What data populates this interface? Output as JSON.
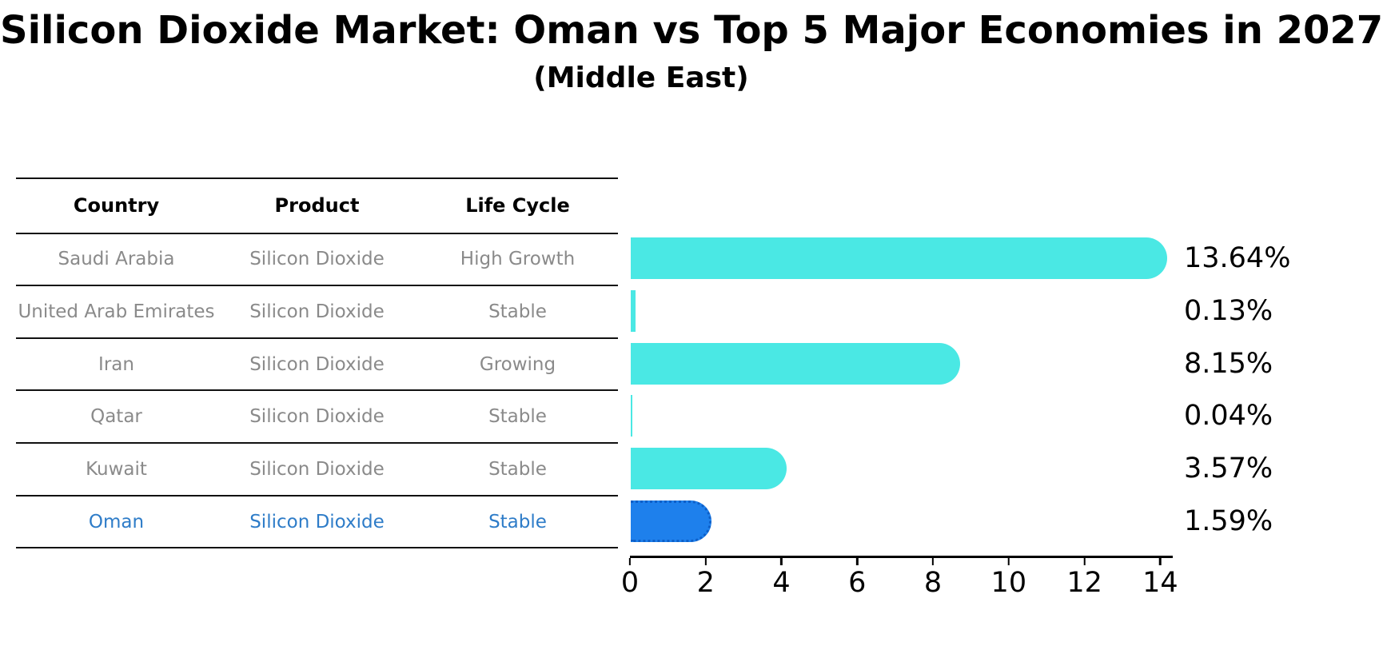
{
  "title": "Silicon Dioxide Market: Oman vs Top 5 Major Economies in 2027",
  "subtitle": "(Middle East)",
  "table": {
    "headers": {
      "country": "Country",
      "product": "Product",
      "life_cycle": "Life Cycle"
    },
    "rows": [
      {
        "country": "Saudi Arabia",
        "product": "Silicon Dioxide",
        "life_cycle": "High Growth",
        "highlight": false
      },
      {
        "country": "United Arab Emirates",
        "product": "Silicon Dioxide",
        "life_cycle": "Stable",
        "highlight": false
      },
      {
        "country": "Iran",
        "product": "Silicon Dioxide",
        "life_cycle": "Growing",
        "highlight": false
      },
      {
        "country": "Qatar",
        "product": "Silicon Dioxide",
        "life_cycle": "Stable",
        "highlight": false
      },
      {
        "country": "Kuwait",
        "product": "Silicon Dioxide",
        "life_cycle": "Stable",
        "highlight": false
      },
      {
        "country": "Oman",
        "product": "Silicon Dioxide",
        "life_cycle": "Stable",
        "highlight": true
      }
    ]
  },
  "chart_data": {
    "type": "bar",
    "orientation": "horizontal",
    "title": "Silicon Dioxide Market: Oman vs Top 5 Major Economies in 2027 (Middle East)",
    "categories": [
      "Saudi Arabia",
      "United Arab Emirates",
      "Iran",
      "Qatar",
      "Kuwait",
      "Oman"
    ],
    "values": [
      13.64,
      0.13,
      8.15,
      0.04,
      3.57,
      1.59
    ],
    "value_labels": [
      "13.64%",
      "0.13%",
      "8.15%",
      "0.04%",
      "3.57%",
      "1.59%"
    ],
    "unit": "%",
    "xlim": [
      0,
      14.33
    ],
    "xticks": [
      0,
      2,
      4,
      6,
      8,
      10,
      12,
      14
    ],
    "grid": false,
    "legend": false,
    "highlight_index": 5,
    "colors": {
      "bar": "#4AE8E4",
      "highlight_bar": "#1E80EC",
      "highlight_border": "#0D5FC8",
      "highlight_text": "#2E7CC8",
      "muted_text": "#8A8A8A",
      "axis": "#000000"
    }
  }
}
